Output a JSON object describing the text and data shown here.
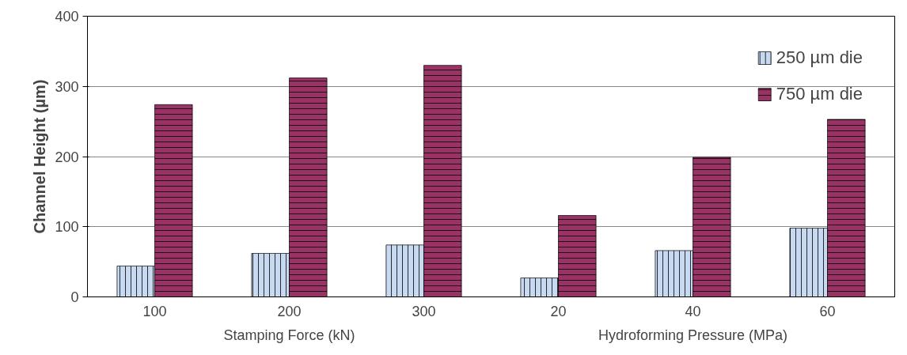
{
  "chart_data": {
    "type": "bar",
    "ylabel": "Channel Height (µm)",
    "categories": [
      "100",
      "200",
      "300",
      "20",
      "40",
      "60"
    ],
    "series": [
      {
        "name": "250 µm die",
        "color": "#c6d9f1",
        "values": [
          44,
          62,
          74,
          27,
          66,
          98
        ]
      },
      {
        "name": "750 µm die",
        "color": "#993366",
        "values": [
          274,
          312,
          330,
          116,
          199,
          253
        ]
      }
    ],
    "ylim": [
      0,
      400
    ],
    "yticks": [
      0,
      100,
      200,
      300,
      400
    ],
    "grid": "y",
    "legend": "top right",
    "annotations": [
      "Stamping Force (kN)",
      "Hydroforming Pressure (MPa)"
    ]
  }
}
